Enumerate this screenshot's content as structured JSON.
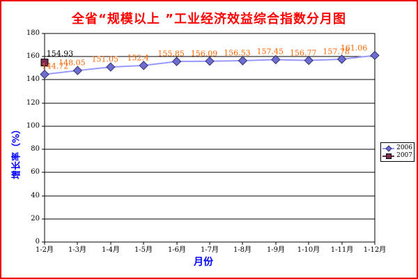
{
  "page": {
    "background": "#FFFFFF",
    "border_color": "#EE0000"
  },
  "chart_data": {
    "type": "line",
    "title": "全省“规模以上 ”工业经济效益综合指数分月图",
    "title_color": "#FF0000",
    "xlabel": "月份",
    "ylabel": "增长率（%）",
    "axis_title_color": "#0000FF",
    "categories": [
      "1-2月",
      "1-3月",
      "1-4月",
      "1-5月",
      "1-6月",
      "1-7月",
      "1-8月",
      "1-9月",
      "1-10月",
      "1-11月",
      "1-12月"
    ],
    "ylim": [
      0,
      180
    ],
    "ytick_step": 20,
    "yticks": [
      0,
      20,
      40,
      60,
      80,
      100,
      120,
      140,
      160,
      180
    ],
    "grid": true,
    "gridline_color": "#000000",
    "plot_bg": "#FFFFFF",
    "tick_label_color": "#000000",
    "legend_position": "middle-right",
    "series": [
      {
        "name": "2006",
        "marker": "diamond",
        "line_color": "#9999FF",
        "marker_fill": "#6D6DD2",
        "marker_stroke": "#33336B",
        "label_color": "#FF6600",
        "values": [
          144.72,
          148.05,
          151.05,
          152.4,
          155.85,
          156.09,
          156.53,
          157.45,
          156.77,
          157.78,
          161.06
        ],
        "labels": [
          "144.72",
          "148.05",
          "151.05",
          "152.4",
          "155.85",
          "156.09",
          "156.53",
          "157.45",
          "156.77",
          "157.78",
          "161.06"
        ]
      },
      {
        "name": "2007",
        "marker": "square",
        "line_color": "#6B2344",
        "marker_fill": "#7C2B52",
        "marker_stroke": "#000000",
        "label_color": "#000000",
        "values": [
          154.93
        ],
        "labels": [
          "154.93"
        ]
      }
    ]
  }
}
